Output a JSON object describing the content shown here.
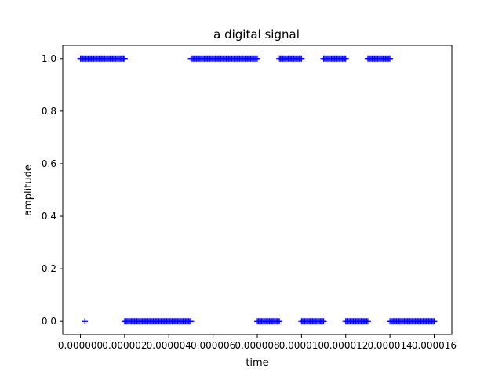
{
  "chart_data": {
    "type": "scatter",
    "title": "a digital signal",
    "xlabel": "time",
    "ylabel": "amplitude",
    "xlim": [
      -8e-07,
      1.68e-05
    ],
    "ylim": [
      -0.05,
      1.05
    ],
    "grid": false,
    "legend": "none",
    "marker": "+",
    "color": "#0000ff",
    "x_ticks": [
      {
        "value": 0.0,
        "label": "0.000000"
      },
      {
        "value": 2e-06,
        "label": "0.000002"
      },
      {
        "value": 4e-06,
        "label": "0.000004"
      },
      {
        "value": 6e-06,
        "label": "0.000006"
      },
      {
        "value": 8e-06,
        "label": "0.000008"
      },
      {
        "value": 1e-05,
        "label": "0.000010"
      },
      {
        "value": 1.2e-05,
        "label": "0.000012"
      },
      {
        "value": 1.4e-05,
        "label": "0.000014"
      },
      {
        "value": 1.6e-05,
        "label": "0.000016"
      }
    ],
    "y_ticks": [
      {
        "value": 0.0,
        "label": "0.0"
      },
      {
        "value": 0.2,
        "label": "0.2"
      },
      {
        "value": 0.4,
        "label": "0.4"
      },
      {
        "value": 0.6,
        "label": "0.6"
      },
      {
        "value": 0.8,
        "label": "0.8"
      },
      {
        "value": 1.0,
        "label": "1.0"
      }
    ],
    "segments": [
      {
        "x_start": 0.0,
        "x_end": 2e-06,
        "value": 1
      },
      {
        "x_start": 2e-06,
        "x_end": 5e-06,
        "value": 0
      },
      {
        "x_start": 5e-06,
        "x_end": 8e-06,
        "value": 1
      },
      {
        "x_start": 8e-06,
        "x_end": 9e-06,
        "value": 0
      },
      {
        "x_start": 9e-06,
        "x_end": 1e-05,
        "value": 1
      },
      {
        "x_start": 1e-05,
        "x_end": 1.1e-05,
        "value": 0
      },
      {
        "x_start": 1.1e-05,
        "x_end": 1.2e-05,
        "value": 1
      },
      {
        "x_start": 1.2e-05,
        "x_end": 1.3e-05,
        "value": 0
      },
      {
        "x_start": 1.3e-05,
        "x_end": 1.4e-05,
        "value": 1
      },
      {
        "x_start": 1.4e-05,
        "x_end": 1.6e-05,
        "value": 0
      }
    ],
    "sample_step": 5e-08,
    "extra_points": [
      {
        "x": 2e-07,
        "y": 0
      }
    ]
  }
}
